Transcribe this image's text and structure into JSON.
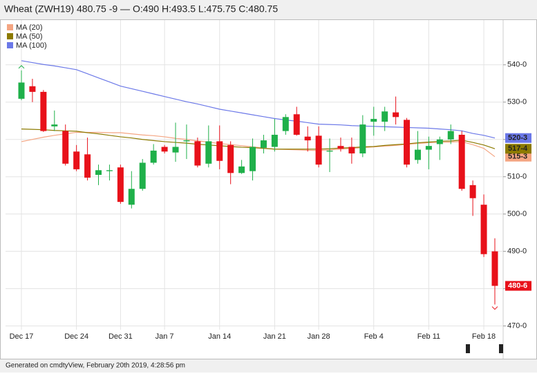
{
  "chart_data": {
    "type": "candlestick",
    "title": "Wheat (ZWH19) 480.75 -9 — O:490 H:493.5 L:475.75 C:480.75",
    "categories": [
      "Dec 17",
      null,
      null,
      null,
      null,
      "Dec 24",
      null,
      null,
      null,
      "Dec 31",
      null,
      null,
      null,
      "Jan 7",
      null,
      null,
      null,
      null,
      "Jan 14",
      null,
      null,
      null,
      null,
      "Jan 21",
      null,
      null,
      null,
      "Jan 28",
      null,
      null,
      null,
      null,
      "Feb 4",
      null,
      null,
      null,
      null,
      "Feb 11",
      null,
      null,
      null,
      null,
      "Feb 18",
      null
    ],
    "up_color": "#1fb04a",
    "down_color": "#e8111a",
    "last_label": "480-6",
    "open": [
      530.9,
      534.25,
      532.75,
      523.5,
      522.25,
      516.75,
      516,
      510.5,
      511.5,
      512.5,
      502.5,
      506.75,
      513.75,
      518,
      516.5,
      519.5,
      519.5,
      513.5,
      519.5,
      518.5,
      511,
      511.5,
      517.75,
      518,
      522.25,
      526.75,
      520.75,
      521,
      516.75,
      518.25,
      518,
      516.25,
      524.75,
      524.75,
      527.25,
      525.25,
      514.5,
      517.25,
      518.75,
      520,
      521.25,
      507.75,
      502.5,
      490
    ],
    "high": [
      538.5,
      536.25,
      533.25,
      527.75,
      524,
      518.5,
      520.5,
      513.25,
      513.25,
      513.25,
      511.5,
      514.75,
      518.75,
      518.5,
      524.5,
      524,
      520.5,
      523.75,
      523.75,
      519.5,
      514.5,
      520.25,
      521.25,
      525.5,
      526.75,
      528.75,
      523.5,
      523.5,
      520.25,
      520.5,
      520.5,
      526.5,
      528.75,
      528.75,
      531.5,
      525.75,
      522.25,
      520.75,
      520.75,
      524,
      522.25,
      509,
      505.25,
      493.5
    ],
    "low": [
      530.5,
      530,
      522,
      522.25,
      513,
      511.5,
      509,
      507.75,
      509,
      502.75,
      501.5,
      506.25,
      513.25,
      516.25,
      514,
      514.75,
      512.5,
      512.5,
      512,
      508,
      510.75,
      509,
      516.25,
      516.75,
      521.25,
      521,
      516.75,
      512.5,
      511.25,
      516.75,
      513.5,
      515.25,
      521,
      522.25,
      524,
      512.5,
      513.5,
      512,
      514.5,
      518.75,
      506.25,
      499.5,
      488.5,
      475.75
    ],
    "close": [
      535.25,
      532.75,
      522.25,
      524,
      513.5,
      512,
      509.75,
      511.75,
      511.75,
      503.25,
      506.75,
      513.75,
      517,
      516.75,
      518,
      519.75,
      513,
      519.5,
      514.25,
      511,
      512.75,
      518,
      519.75,
      521.25,
      526,
      521.25,
      519.75,
      513.25,
      517,
      517.5,
      516.25,
      524,
      525.5,
      527.5,
      526,
      513.25,
      517.25,
      518.25,
      520,
      522.25,
      506.75,
      504.25,
      489.25,
      480.75
    ],
    "series": [
      {
        "name": "MA (20)",
        "color": "#f4a582",
        "last_label": "515-3",
        "values": [
          519.4,
          520,
          520.6,
          521.1,
          521.5,
          521.9,
          521.9,
          521.9,
          521.8,
          521.8,
          521.5,
          521.2,
          521,
          520.7,
          520.3,
          520,
          519.6,
          519.3,
          518.9,
          518.6,
          518.3,
          518,
          517.7,
          517.4,
          517.3,
          517.2,
          517.1,
          517,
          517.2,
          517.4,
          517.6,
          517.8,
          518,
          518.2,
          518.4,
          518.7,
          518.9,
          519.1,
          519.2,
          519.3,
          519.4,
          518.6,
          517.6,
          515.375
        ]
      },
      {
        "name": "MA (50)",
        "color": "#8c7a00",
        "last_label": "517-4",
        "values": [
          522.8,
          522.7,
          522.6,
          522.4,
          522.3,
          522.2,
          521.8,
          521.5,
          521.1,
          520.7,
          520.4,
          520,
          519.7,
          519.4,
          519.2,
          519,
          518.7,
          518.5,
          518.3,
          518.1,
          517.9,
          517.8,
          517.6,
          517.4,
          517.4,
          517.4,
          517.4,
          517.4,
          517.5,
          517.7,
          517.8,
          518,
          518.1,
          518.4,
          518.6,
          518.8,
          519.1,
          519.3,
          519.5,
          519.6,
          519.8,
          519.2,
          518.5,
          517.5
        ]
      },
      {
        "name": "MA (100)",
        "color": "#6b78e8",
        "last_label": "520-3",
        "values": [
          541.1,
          540.6,
          540.1,
          539.7,
          539.2,
          538.7,
          537.6,
          536.5,
          535.4,
          534.3,
          533.6,
          532.9,
          532.2,
          531.5,
          530.8,
          530.1,
          529.5,
          528.8,
          528.1,
          527.6,
          527.1,
          526.6,
          526.1,
          525.6,
          525.2,
          524.9,
          524.5,
          524.1,
          524,
          523.9,
          523.7,
          523.6,
          523.5,
          523.4,
          523.3,
          523.2,
          523.1,
          523,
          522.8,
          522.6,
          522.3,
          521.6,
          521.1,
          520.375
        ]
      }
    ],
    "ylim": [
      469,
      552
    ],
    "yticks": [
      {
        "value": 470,
        "label": "470-0"
      },
      {
        "value": 480,
        "label": "480-0"
      },
      {
        "value": 490,
        "label": "490-0"
      },
      {
        "value": 500,
        "label": "500-0"
      },
      {
        "value": 510,
        "label": "510-0"
      },
      {
        "value": 520,
        "label": "520-0"
      },
      {
        "value": 530,
        "label": "530-0"
      },
      {
        "value": 540,
        "label": "540-0"
      }
    ],
    "grid": true
  },
  "footer": "Generated on cmdtyView, February 20th 2019, 4:28:56 pm"
}
